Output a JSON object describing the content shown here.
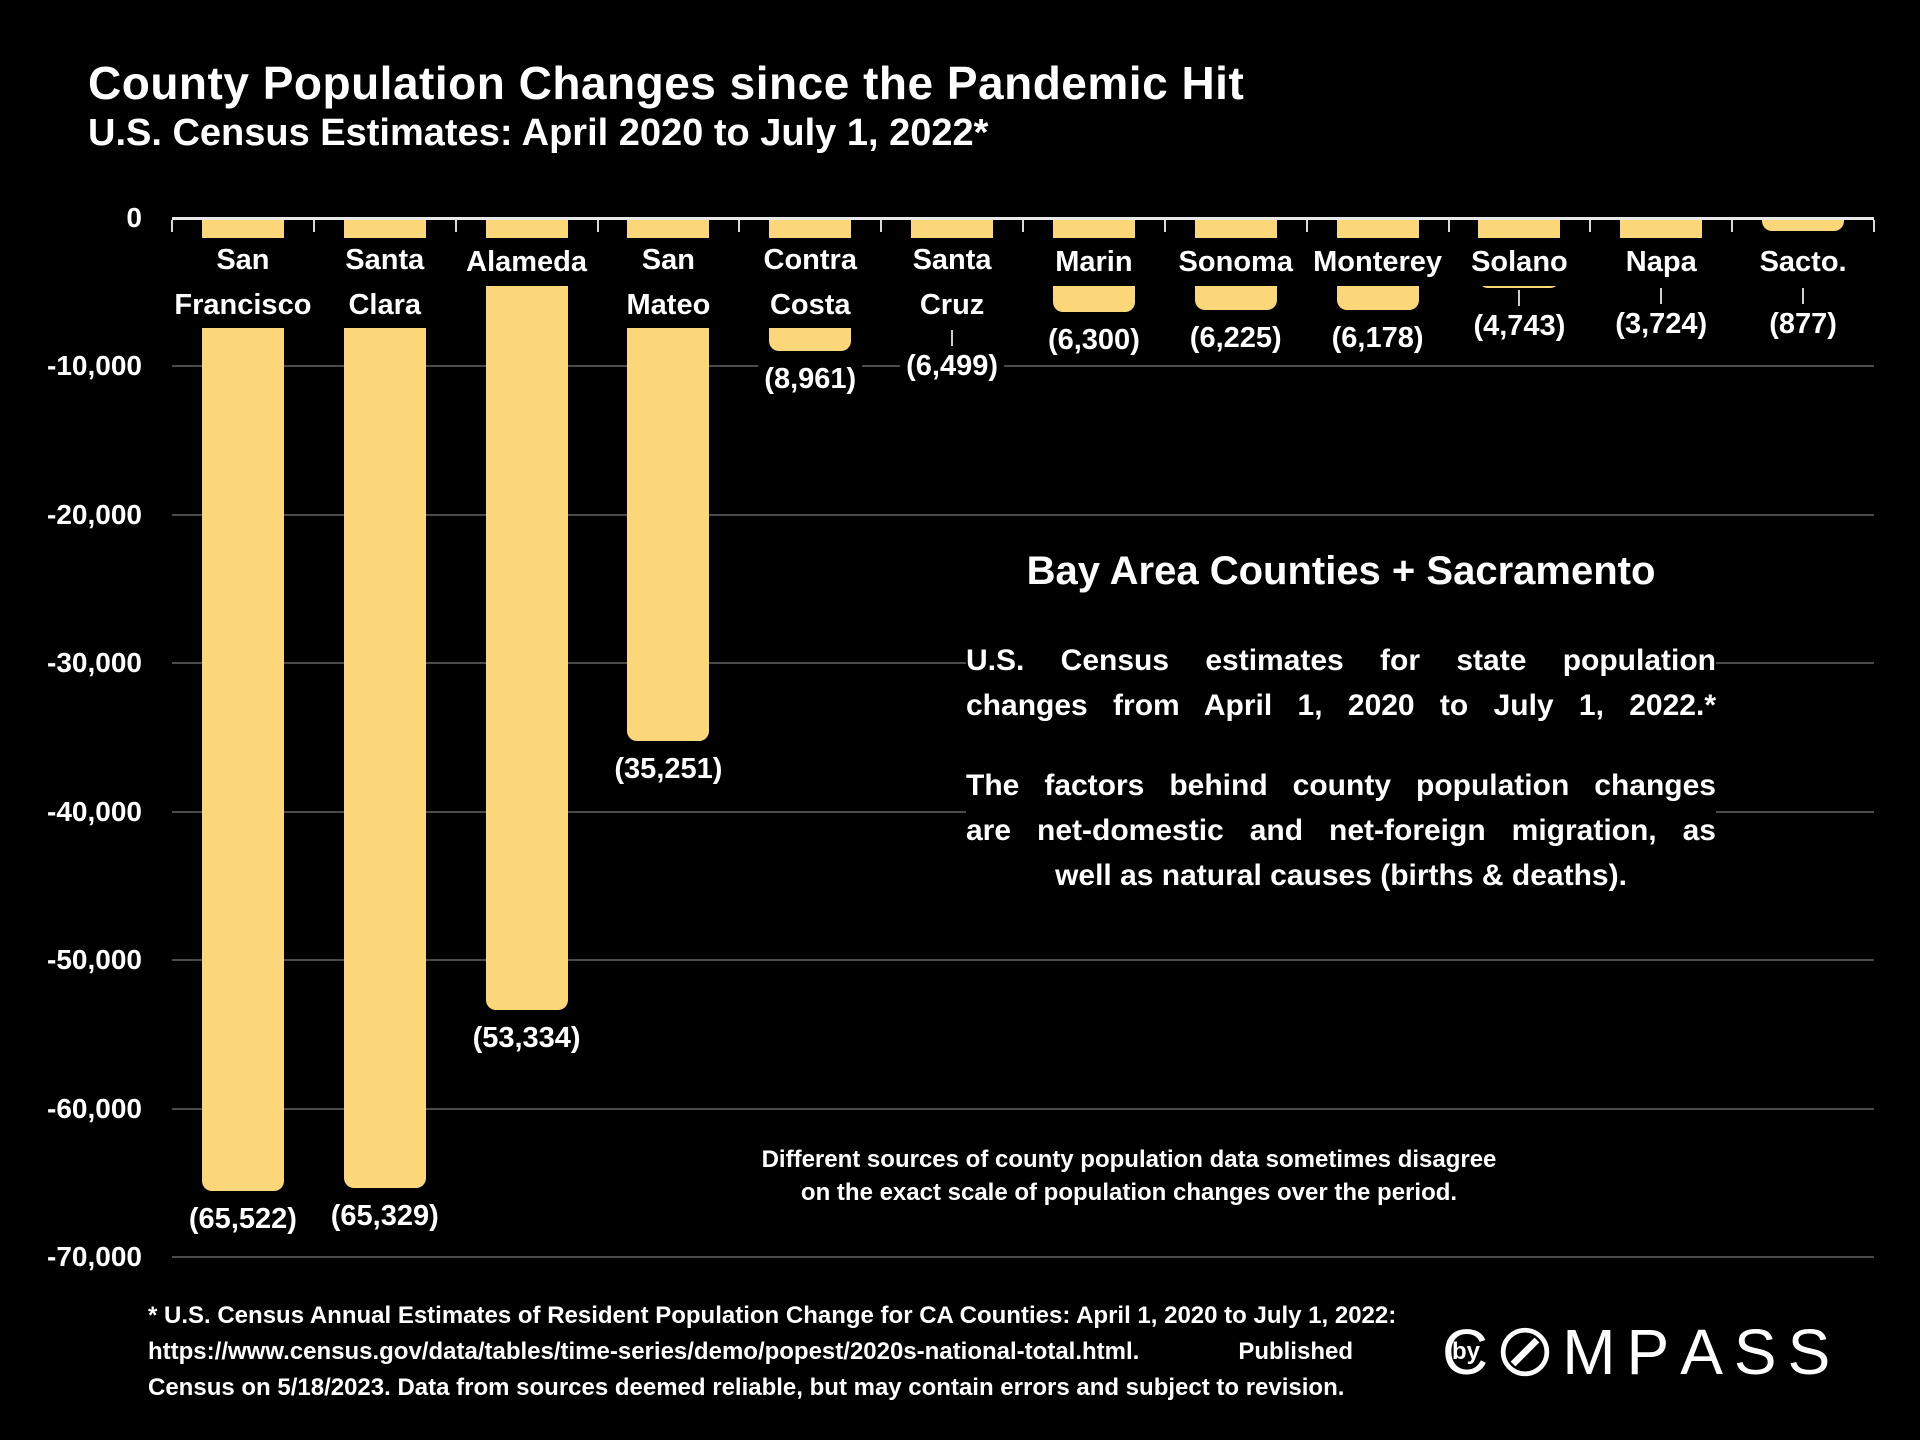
{
  "title": "County Population Changes since the Pandemic Hit",
  "subtitle": "U.S. Census Estimates: April 2020 to July 1, 2022*",
  "colors": {
    "background": "#000000",
    "bar": "#FBD77A",
    "grid": "#4b4b4b",
    "axis": "#e8e8e8",
    "tick": "#d9d9d9",
    "leader": "#cfcfcf",
    "text": "#ffffff"
  },
  "chart_data": {
    "type": "bar",
    "title": "County Population Changes since the Pandemic Hit",
    "subtitle": "U.S. Census Estimates: April 2020 to July 1, 2022*",
    "xlabel": "",
    "ylabel": "",
    "ylim": [
      -70000,
      0
    ],
    "grid": "horizontal",
    "yticks": [
      {
        "value": 0,
        "label": "0"
      },
      {
        "value": -10000,
        "label": "-10,000"
      },
      {
        "value": -20000,
        "label": "-20,000"
      },
      {
        "value": -30000,
        "label": "-30,000"
      },
      {
        "value": -40000,
        "label": "-40,000"
      },
      {
        "value": -50000,
        "label": "-50,000"
      },
      {
        "value": -60000,
        "label": "-60,000"
      },
      {
        "value": -70000,
        "label": "-70,000"
      }
    ],
    "categories": [
      "San Francisco",
      "Santa Clara",
      "Alameda",
      "San Mateo",
      "Contra Costa",
      "Santa Cruz",
      "Marin",
      "Sonoma",
      "Monterey",
      "Solano",
      "Napa",
      "Sacto."
    ],
    "values": [
      -65522,
      -65329,
      -53334,
      -35251,
      -8961,
      -6499,
      -6300,
      -6225,
      -6178,
      -4743,
      -3724,
      -877
    ],
    "bars": [
      {
        "name_lines": [
          "San",
          "Francisco"
        ],
        "value": -65522,
        "label": "(65,522)",
        "leader": false
      },
      {
        "name_lines": [
          "Santa",
          "Clara"
        ],
        "value": -65329,
        "label": "(65,329)",
        "leader": false
      },
      {
        "name_lines": [
          "Alameda"
        ],
        "value": -53334,
        "label": "(53,334)",
        "leader": false
      },
      {
        "name_lines": [
          "San",
          "Mateo"
        ],
        "value": -35251,
        "label": "(35,251)",
        "leader": false
      },
      {
        "name_lines": [
          "Contra",
          "Costa"
        ],
        "value": -8961,
        "label": "(8,961)",
        "leader": false
      },
      {
        "name_lines": [
          "Santa",
          "Cruz"
        ],
        "value": -6499,
        "label": "(6,499)",
        "leader": true
      },
      {
        "name_lines": [
          "Marin"
        ],
        "value": -6300,
        "label": "(6,300)",
        "leader": false
      },
      {
        "name_lines": [
          "Sonoma"
        ],
        "value": -6225,
        "label": "(6,225)",
        "leader": false
      },
      {
        "name_lines": [
          "Monterey"
        ],
        "value": -6178,
        "label": "(6,178)",
        "leader": false
      },
      {
        "name_lines": [
          "Solano"
        ],
        "value": -4743,
        "label": "(4,743)",
        "leader": true
      },
      {
        "name_lines": [
          "Napa"
        ],
        "value": -3724,
        "label": "(3,724)",
        "leader": true
      },
      {
        "name_lines": [
          "Sacto."
        ],
        "value": -877,
        "label": "(877)",
        "leader": true
      }
    ]
  },
  "annotations": {
    "heading": "Bay Area Counties + Sacramento",
    "para1_lines": [
      "U.S. Census estimates for state population",
      "changes from April 1, 2020 to July 1, 2022.*"
    ],
    "para2_lines": [
      "The factors behind county population changes",
      "are net-domestic and net-foreign migration, as",
      "well as natural causes (births & deaths)."
    ],
    "note_lines": [
      "Different sources of county population data sometimes disagree",
      "on the exact scale of population changes over the period."
    ],
    "footnote_lines": [
      "* U.S. Census Annual Estimates of Resident Population Change for CA Counties: April 1, 2020 to July 1, 2022:",
      "https://www.census.gov/data/tables/time-series/demo/popest/2020s-national-total.html. Published by",
      "Census on 5/18/2023. Data from sources deemed reliable, but may contain errors and subject to revision."
    ]
  },
  "logo": {
    "text": "COMPASS",
    "letters": [
      "C",
      "O",
      "M",
      "P",
      "A",
      "S",
      "S"
    ]
  }
}
